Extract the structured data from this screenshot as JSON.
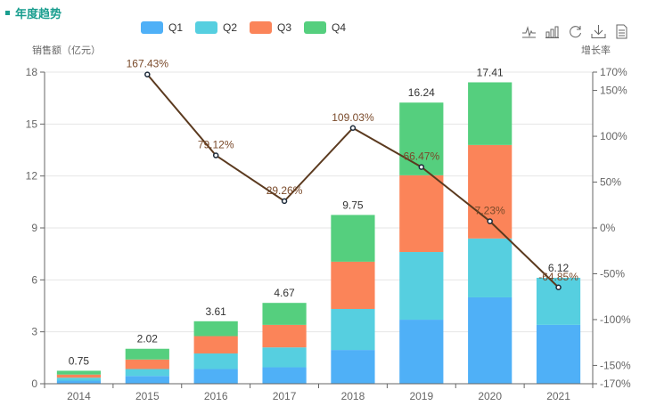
{
  "title": "年度趋势",
  "colors": {
    "Q1": "#4fb0f7",
    "Q2": "#56cfe0",
    "Q3": "#fb8459",
    "Q4": "#55cf7e",
    "line": "#5b3a1f",
    "accent": "#1a9e8f"
  },
  "toolbox": [
    {
      "name": "line-chart-icon"
    },
    {
      "name": "bar-chart-icon"
    },
    {
      "name": "restore-icon"
    },
    {
      "name": "download-icon"
    },
    {
      "name": "data-view-icon"
    }
  ],
  "chart_data": {
    "type": "bar",
    "title": "年度趋势",
    "ylabel": "销售额（亿元）",
    "y2label": "增长率",
    "categories": [
      "2014",
      "2015",
      "2016",
      "2017",
      "2018",
      "2019",
      "2020",
      "2021"
    ],
    "ylim": [
      0,
      18
    ],
    "yticks": [
      0,
      3,
      6,
      9,
      12,
      15,
      18
    ],
    "y2lim": [
      -170,
      170
    ],
    "y2ticks": [
      -170,
      -150,
      -100,
      -50,
      0,
      50,
      100,
      150,
      170
    ],
    "y2tick_labels": [
      "-170%",
      "-150%",
      "-100%",
      "-50%",
      "0%",
      "50%",
      "100%",
      "150%",
      "170%"
    ],
    "legend": [
      "Q1",
      "Q2",
      "Q3",
      "Q4"
    ],
    "legend_position": "top-center",
    "grid": true,
    "series": [
      {
        "name": "Q1",
        "type": "bar",
        "stack": "total",
        "values": [
          0.18,
          0.45,
          0.85,
          0.95,
          1.95,
          3.7,
          4.99,
          3.4
        ]
      },
      {
        "name": "Q2",
        "type": "bar",
        "stack": "total",
        "values": [
          0.17,
          0.4,
          0.9,
          1.15,
          2.37,
          3.91,
          3.4,
          2.72
        ]
      },
      {
        "name": "Q3",
        "type": "bar",
        "stack": "total",
        "values": [
          0.18,
          0.55,
          1.0,
          1.3,
          2.73,
          4.43,
          5.4,
          0
        ]
      },
      {
        "name": "Q4",
        "type": "bar",
        "stack": "total",
        "values": [
          0.22,
          0.62,
          0.86,
          1.27,
          2.7,
          4.2,
          3.62,
          0
        ]
      }
    ],
    "totals": [
      0.75,
      2.02,
      3.61,
      4.67,
      9.75,
      16.24,
      17.41,
      6.12
    ],
    "total_labels": [
      "0.75",
      "2.02",
      "3.61",
      "4.67",
      "9.75",
      "16.24",
      "17.41",
      "6.12"
    ],
    "growth": {
      "name": "增长率",
      "type": "line",
      "axis": "right",
      "values": [
        null,
        167.43,
        79.12,
        29.26,
        109.03,
        66.47,
        7.23,
        -64.85
      ],
      "labels": [
        "",
        "167.43%",
        "79.12%",
        "29.26%",
        "109.03%",
        "66.47%",
        "7.23%",
        "-64.85%"
      ]
    }
  }
}
